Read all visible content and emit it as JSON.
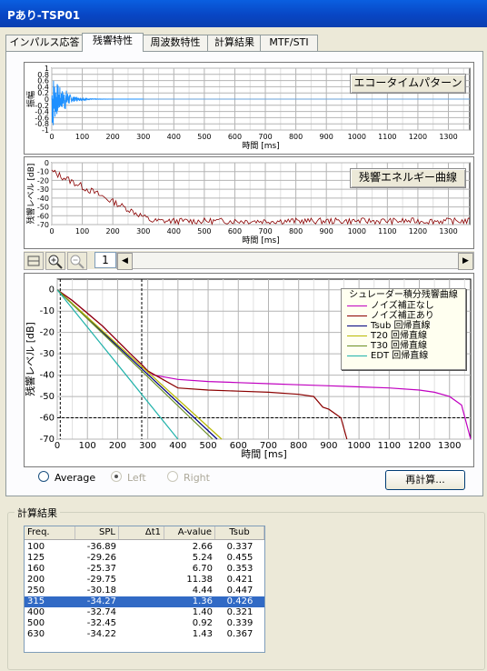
{
  "window": {
    "title": "Pあり-TSP01"
  },
  "tabs": [
    {
      "label": "インパルス応答",
      "active": false
    },
    {
      "label": "残響特性",
      "active": true
    },
    {
      "label": "周波数特性",
      "active": false
    },
    {
      "label": "計算結果",
      "active": false
    },
    {
      "label": "MTF/STI",
      "active": false
    }
  ],
  "plot1": {
    "button": "エコータイムパターン",
    "xlabel": "時間 [ms]",
    "ylabel": "振幅",
    "yticks": [
      "1",
      "0.8",
      "0.6",
      "0.4",
      "0.2",
      "0",
      "-0.2",
      "-0.4",
      "-0.6",
      "-0.8",
      "-1"
    ],
    "xticks": [
      "0",
      "100",
      "200",
      "300",
      "400",
      "500",
      "600",
      "700",
      "800",
      "900",
      "1000",
      "1100",
      "1200",
      "1300"
    ],
    "xlim": [
      0,
      1370
    ],
    "ylim": [
      -1,
      1
    ],
    "color": "#1e90ff"
  },
  "plot2": {
    "button": "残響エネルギー曲線",
    "xlabel": "時間 [ms]",
    "ylabel": "残響レベル [dB]",
    "yticks": [
      "0",
      "-10",
      "-20",
      "-30",
      "-40",
      "-50",
      "-60",
      "-70"
    ],
    "xticks": [
      "0",
      "100",
      "200",
      "300",
      "400",
      "500",
      "600",
      "700",
      "800",
      "900",
      "1000",
      "1100",
      "1200",
      "1300"
    ],
    "xlim": [
      0,
      1370
    ],
    "ylim": [
      -70,
      0
    ],
    "color": "#8b0000"
  },
  "toolbar": {
    "page": "1",
    "fit_icon": "fit-window-icon",
    "zoom_in_icon": "zoom-in-icon",
    "zoom_out_icon": "zoom-out-icon"
  },
  "chart_data": {
    "type": "line",
    "title": "",
    "xlabel": "時間 [ms]",
    "ylabel": "残響レベル [dB]",
    "xlim": [
      0,
      1370
    ],
    "ylim": [
      -70,
      5
    ],
    "xticks": [
      "0",
      "100",
      "200",
      "300",
      "400",
      "500",
      "600",
      "700",
      "800",
      "900",
      "1000",
      "1100",
      "1200",
      "1300"
    ],
    "yticks": [
      "0",
      "-10",
      "-20",
      "-30",
      "-40",
      "-50",
      "-60",
      "-70"
    ],
    "grid": true,
    "legend_title": "シュレーダー積分残響曲線",
    "legend_position": "top-right",
    "reference_lines": {
      "vertical_ms": [
        10,
        280
      ],
      "horizontal_db": -60
    },
    "series": [
      {
        "name": "ノイズ補正なし",
        "color": "#c000c0",
        "x": [
          0,
          50,
          100,
          150,
          200,
          250,
          280,
          300,
          320,
          400,
          500,
          600,
          700,
          800,
          900,
          1000,
          1100,
          1200,
          1250,
          1300,
          1340,
          1370
        ],
        "y": [
          0,
          -5,
          -11,
          -17,
          -24,
          -31,
          -35,
          -38,
          -40,
          -42,
          -43,
          -43.5,
          -44,
          -44.5,
          -45,
          -45.5,
          -46,
          -47,
          -48,
          -50,
          -54,
          -70
        ]
      },
      {
        "name": "ノイズ補正あり",
        "color": "#8b0000",
        "x": [
          0,
          50,
          100,
          150,
          200,
          250,
          280,
          300,
          350,
          400,
          500,
          600,
          700,
          800,
          850,
          880,
          900,
          940,
          960
        ],
        "y": [
          0,
          -5,
          -11,
          -17,
          -24,
          -31,
          -35,
          -38,
          -42,
          -46,
          -47,
          -47.5,
          -48,
          -49,
          -50,
          -55,
          -56,
          -60,
          -70
        ]
      },
      {
        "name": "Tsub 回帰直線",
        "color": "#000080",
        "x": [
          0,
          530
        ],
        "y": [
          0,
          -70
        ]
      },
      {
        "name": "T20 回帰直線",
        "color": "#b8b800",
        "x": [
          0,
          545
        ],
        "y": [
          0,
          -70
        ]
      },
      {
        "name": "T30 回帰直線",
        "color": "#6b8e23",
        "x": [
          0,
          515
        ],
        "y": [
          0,
          -70
        ]
      },
      {
        "name": "EDT 回帰直線",
        "color": "#20b2aa",
        "x": [
          0,
          400
        ],
        "y": [
          0,
          -70
        ]
      }
    ]
  },
  "options": {
    "average": "Average",
    "left": "Left",
    "right": "Right",
    "recalc": "再計算..."
  },
  "results": {
    "group_label": "計算結果",
    "columns": [
      "Freq.",
      "SPL",
      "Δt1",
      "A-value",
      "Tsub"
    ],
    "selected_index": 5,
    "rows": [
      [
        "100",
        "-36.89",
        "",
        "2.66",
        "0.337"
      ],
      [
        "125",
        "-29.26",
        "",
        "5.24",
        "0.455"
      ],
      [
        "160",
        "-25.37",
        "",
        "6.70",
        "0.353"
      ],
      [
        "200",
        "-29.75",
        "",
        "11.38",
        "0.421"
      ],
      [
        "250",
        "-30.18",
        "",
        "4.44",
        "0.447"
      ],
      [
        "315",
        "-34.27",
        "",
        "1.36",
        "0.426"
      ],
      [
        "400",
        "-32.74",
        "",
        "1.40",
        "0.321"
      ],
      [
        "500",
        "-32.45",
        "",
        "0.92",
        "0.339"
      ],
      [
        "630",
        "-34.22",
        "",
        "1.43",
        "0.367"
      ]
    ]
  }
}
